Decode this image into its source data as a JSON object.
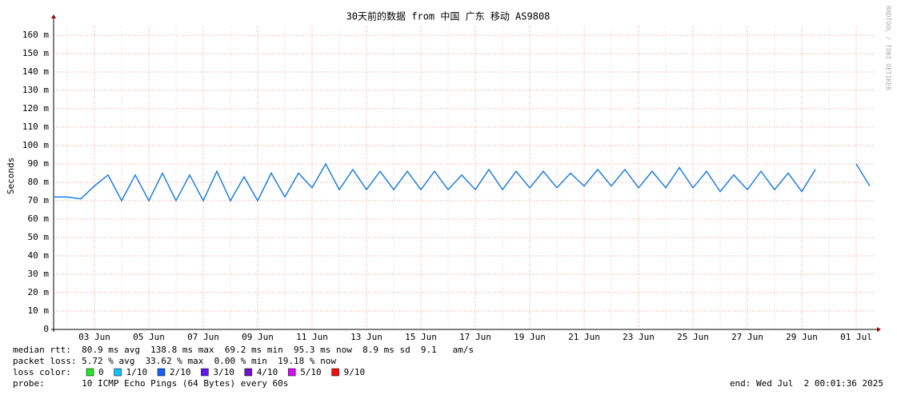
{
  "chart_data": {
    "type": "line",
    "title": "30天前的数据 from 中国 广东 移动 AS9808",
    "y_label": "Seconds",
    "watermark": "RRDTOOL / TOBI OETIKER",
    "categories": [
      null,
      null,
      null,
      "03 Jun",
      null,
      null,
      null,
      "05 Jun",
      null,
      null,
      null,
      "07 Jun",
      null,
      null,
      null,
      "09 Jun",
      null,
      null,
      null,
      "11 Jun",
      null,
      null,
      null,
      "13 Jun",
      null,
      null,
      null,
      "15 Jun",
      null,
      null,
      null,
      "17 Jun",
      null,
      null,
      null,
      "19 Jun",
      null,
      null,
      null,
      "21 Jun",
      null,
      null,
      null,
      "23 Jun",
      null,
      null,
      null,
      "25 Jun",
      null,
      null,
      null,
      "27 Jun",
      null,
      null,
      null,
      "29 Jun",
      null,
      null,
      null,
      "01 Jul",
      null
    ],
    "series": [
      {
        "name": "median rtt",
        "color": "#1f7fe0",
        "values": [
          0.072,
          0.072,
          0.071,
          0.078,
          0.084,
          0.07,
          0.084,
          0.07,
          0.085,
          0.07,
          0.084,
          0.07,
          0.086,
          0.07,
          0.083,
          0.07,
          0.085,
          0.072,
          0.085,
          0.077,
          0.09,
          0.076,
          0.087,
          0.076,
          0.086,
          0.076,
          0.086,
          0.076,
          0.086,
          0.076,
          0.084,
          0.076,
          0.087,
          0.076,
          0.086,
          0.077,
          0.086,
          0.077,
          0.085,
          0.078,
          0.087,
          0.078,
          0.087,
          0.077,
          0.086,
          0.077,
          0.088,
          0.077,
          0.086,
          0.075,
          0.084,
          0.076,
          0.086,
          0.076,
          0.085,
          0.075,
          0.087,
          null,
          null,
          0.09,
          0.078
        ]
      }
    ],
    "ylim": [
      0,
      0.1648
    ],
    "yticks": [
      0,
      {
        "value": 0.01,
        "label": "10 m"
      },
      {
        "value": 0.02,
        "label": "20 m"
      },
      {
        "value": 0.03,
        "label": "30 m"
      },
      {
        "value": 0.04,
        "label": "40 m"
      },
      {
        "value": 0.05,
        "label": "50 m"
      },
      {
        "value": 0.06,
        "label": "60 m"
      },
      {
        "value": 0.07,
        "label": "70 m"
      },
      {
        "value": 0.08,
        "label": "80 m"
      },
      {
        "value": 0.09,
        "label": "90 m"
      },
      {
        "value": 0.1,
        "label": "100 m"
      },
      {
        "value": 0.11,
        "label": "110 m"
      },
      {
        "value": 0.12,
        "label": "120 m"
      },
      {
        "value": 0.13,
        "label": "130 m"
      },
      {
        "value": 0.14,
        "label": "140 m"
      },
      {
        "value": 0.15,
        "label": "150 m"
      },
      {
        "value": 0.16,
        "label": "160 m"
      }
    ],
    "grid": true,
    "stats": [
      "median rtt:  80.9 ms avg  138.8 ms max  69.2 ms min  95.3 ms now  8.9 ms sd  9.1   am/s",
      "packet loss: 5.72 % avg  33.62 % max  0.00 % min  19.18 % now"
    ],
    "loss_legend_title": "loss color:",
    "loss_legend": [
      {
        "label": "0",
        "color": "#26e326"
      },
      {
        "label": "1/10",
        "color": "#18c0f0"
      },
      {
        "label": "2/10",
        "color": "#1860f0"
      },
      {
        "label": "3/10",
        "color": "#6018f0"
      },
      {
        "label": "4/10",
        "color": "#7010d0"
      },
      {
        "label": "5/10",
        "color": "#d010f0"
      },
      {
        "label": "9/10",
        "color": "#f01010"
      }
    ],
    "probe": "probe:       10 ICMP Echo Pings (64 Bytes) every 60s",
    "end": "end: Wed Jul  2 00:01:36 2025"
  }
}
